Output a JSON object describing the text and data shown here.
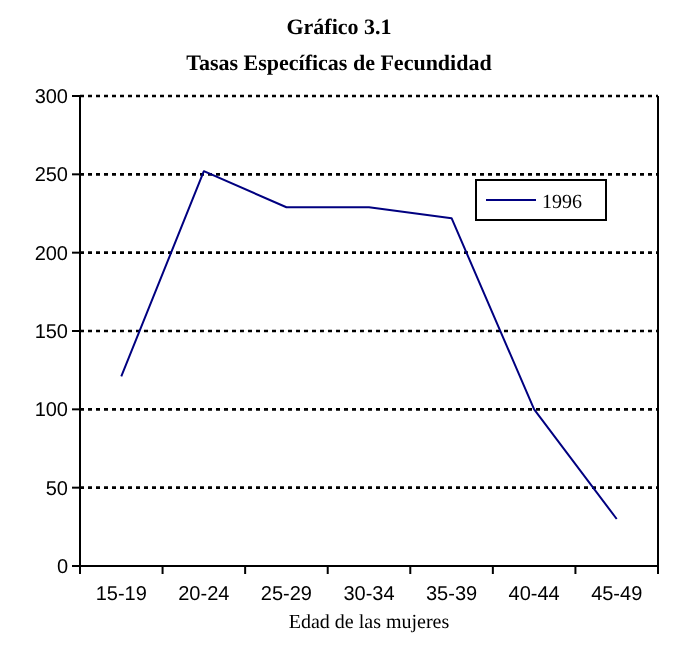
{
  "chart_data": {
    "type": "line",
    "title": "Gráfico  3.1",
    "subtitle": "Tasas Específicas de Fecundidad",
    "xlabel": "Edad de las mujeres",
    "categories": [
      "15-19",
      "20-24",
      "25-29",
      "30-34",
      "35-39",
      "40-44",
      "45-49"
    ],
    "series": [
      {
        "name": "1996",
        "color": "#000080",
        "values": [
          121,
          252,
          229,
          229,
          222,
          100,
          30
        ]
      }
    ],
    "ylim": [
      0,
      300
    ],
    "yticks": [
      0,
      50,
      100,
      150,
      200,
      250,
      300
    ],
    "grid": "y",
    "legend": "top right",
    "marker": "none",
    "line_style": "solid"
  }
}
